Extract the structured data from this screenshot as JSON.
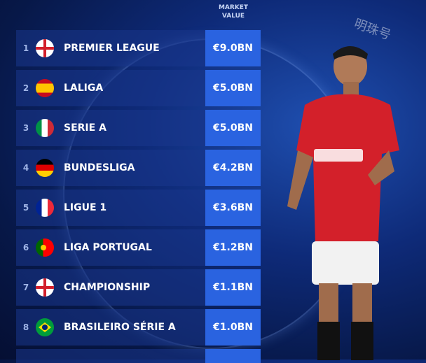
{
  "header": {
    "column_label": "MARKET\nVALUE"
  },
  "watermark": "明珠号",
  "leagues": [
    {
      "rank": "1",
      "name": "PREMIER LEAGUE",
      "value": "€9.0BN",
      "flag": "england"
    },
    {
      "rank": "2",
      "name": "LALIGA",
      "value": "€5.0BN",
      "flag": "spain"
    },
    {
      "rank": "3",
      "name": "SERIE A",
      "value": "€5.0BN",
      "flag": "italy"
    },
    {
      "rank": "4",
      "name": "BUNDESLIGA",
      "value": "€4.2BN",
      "flag": "germany"
    },
    {
      "rank": "5",
      "name": "LIGUE 1",
      "value": "€3.6BN",
      "flag": "france"
    },
    {
      "rank": "6",
      "name": "LIGA PORTUGAL",
      "value": "€1.2BN",
      "flag": "portugal"
    },
    {
      "rank": "7",
      "name": "CHAMPIONSHIP",
      "value": "€1.1BN",
      "flag": "england"
    },
    {
      "rank": "8",
      "name": "BRASILEIRO SÉRIE A",
      "value": "€1.0BN",
      "flag": "brazil"
    }
  ],
  "colors": {
    "value_box": "#2a63e0",
    "background": "#0e2a78",
    "kit_red": "#d3202a"
  }
}
